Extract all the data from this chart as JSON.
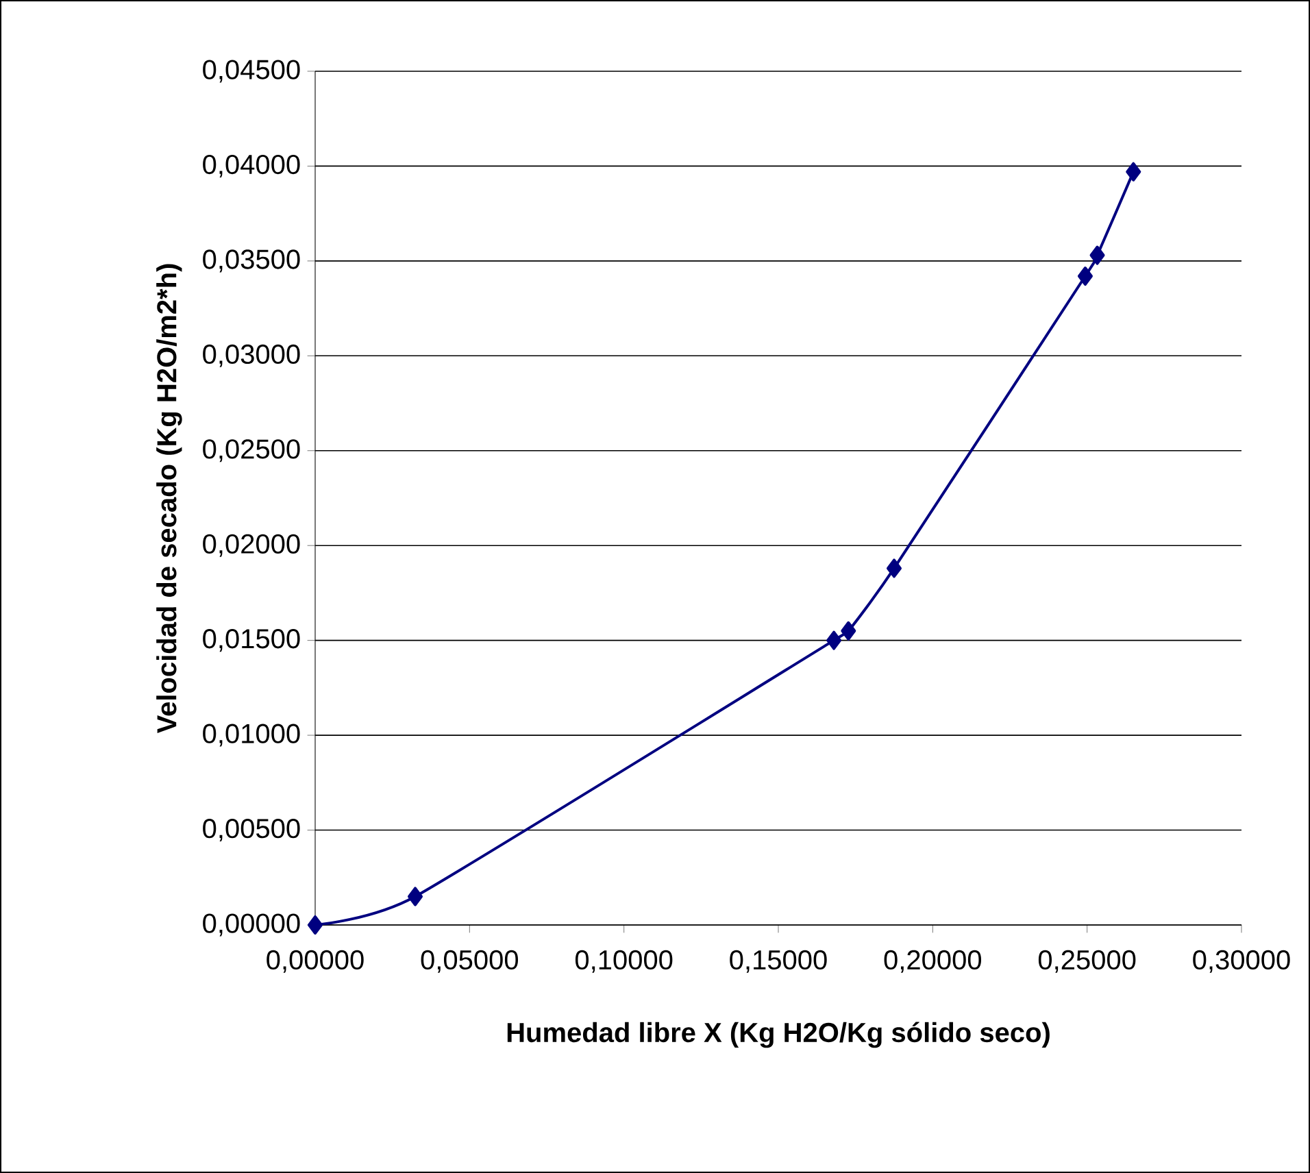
{
  "chart_data": {
    "type": "line",
    "xlabel": "Humedad libre X (Kg H2O/Kg sólido seco)",
    "ylabel": "Velocidad de secado (Kg H2O/m2*h)",
    "x": [
      0,
      0.0324,
      0.168,
      0.1727,
      0.1875,
      0.2494,
      0.2533,
      0.265
    ],
    "series": [
      {
        "color": "#000080",
        "values": [
          0,
          0.0015,
          0.015,
          0.0155,
          0.0188,
          0.0342,
          0.0353,
          0.0397
        ]
      }
    ],
    "xlim": [
      0,
      0.3
    ],
    "ylim": [
      0,
      0.045
    ],
    "xticks": [
      {
        "value": 0,
        "label": "0,00000"
      },
      {
        "value": 0.05,
        "label": "0,05000"
      },
      {
        "value": 0.1,
        "label": "0,10000"
      },
      {
        "value": 0.15,
        "label": "0,15000"
      },
      {
        "value": 0.2,
        "label": "0,20000"
      },
      {
        "value": 0.25,
        "label": "0,25000"
      },
      {
        "value": 0.3,
        "label": "0,30000"
      }
    ],
    "yticks": [
      {
        "value": 0,
        "label": "0,00000"
      },
      {
        "value": 0.005,
        "label": "0,00500"
      },
      {
        "value": 0.01,
        "label": "0,01000"
      },
      {
        "value": 0.015,
        "label": "0,01500"
      },
      {
        "value": 0.02,
        "label": "0,02000"
      },
      {
        "value": 0.025,
        "label": "0,02500"
      },
      {
        "value": 0.03,
        "label": "0,03000"
      },
      {
        "value": 0.035,
        "label": "0,03500"
      },
      {
        "value": 0.04,
        "label": "0,04000"
      },
      {
        "value": 0.045,
        "label": "0,04500"
      }
    ],
    "grid": "y",
    "marker": "diamond",
    "line_style": "solid"
  }
}
